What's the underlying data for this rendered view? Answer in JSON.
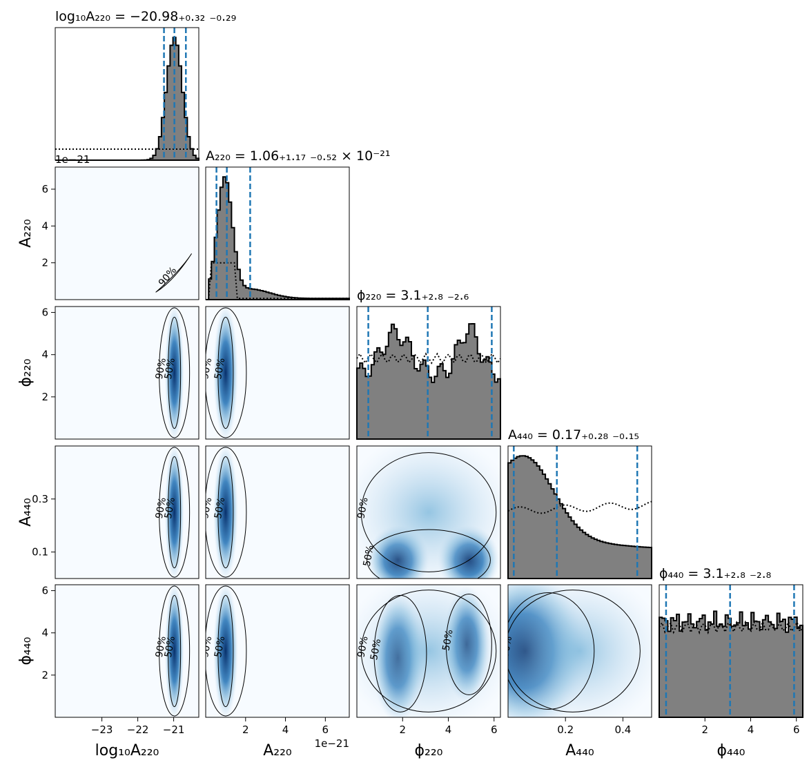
{
  "chart_data": {
    "type": "corner",
    "parameters": [
      {
        "id": "log10A220",
        "label": "log₁₀A₂₂₀",
        "range": [
          -24.3,
          -20.3
        ],
        "ticks": [
          -23,
          -22,
          -21
        ],
        "tick_labels": [
          "−23",
          "−22",
          "−21"
        ],
        "title": "log₁₀A₂₂₀ = −20.98₊₀.₃₂ ₋₀.₂₉",
        "quantiles": [
          -21.27,
          -20.98,
          -20.66
        ]
      },
      {
        "id": "A220",
        "label": "A₂₂₀",
        "range": [
          0,
          7.2
        ],
        "ticks": [
          2,
          4,
          6
        ],
        "tick_labels": [
          "2",
          "4",
          "6"
        ],
        "offset": "1e−21",
        "title": "A₂₂₀ = 1.06₊₁.₁₇ ₋₀.₅₂ × 10⁻²¹",
        "quantiles": [
          0.54,
          1.06,
          2.23
        ]
      },
      {
        "id": "phi220",
        "label": "ϕ₂₂₀",
        "range": [
          0,
          6.28
        ],
        "ticks": [
          2,
          4,
          6
        ],
        "tick_labels": [
          "2",
          "4",
          "6"
        ],
        "title": "ϕ₂₂₀ = 3.1₊₂.₈ ₋₂.₆",
        "quantiles": [
          0.5,
          3.1,
          5.9
        ]
      },
      {
        "id": "A440",
        "label": "A₄₄₀",
        "range": [
          0,
          0.5
        ],
        "ticks": [
          0.2,
          0.4
        ],
        "tick_labels": [
          "0.2",
          "0.4"
        ],
        "yticks": [
          0.1,
          0.3
        ],
        "ytick_labels": [
          "0.1",
          "0.3"
        ],
        "title": "A₄₄₀ = 0.17₊₀.₂₈ ₋₀.₁₅",
        "quantiles": [
          0.02,
          0.17,
          0.45
        ]
      },
      {
        "id": "phi440",
        "label": "ϕ₄₄₀",
        "range": [
          0,
          6.28
        ],
        "ticks": [
          2,
          4,
          6
        ],
        "tick_labels": [
          "2",
          "4",
          "6"
        ],
        "title": "ϕ₄₄₀ = 3.1₊₂.₈ ₋₂.₈",
        "quantiles": [
          0.3,
          3.1,
          5.9
        ]
      }
    ],
    "contour_levels": [
      "50%",
      "90%"
    ],
    "colors": {
      "hist_fill": "#808080",
      "quantile_line": "#1f77b4",
      "density": "#08306b"
    }
  }
}
